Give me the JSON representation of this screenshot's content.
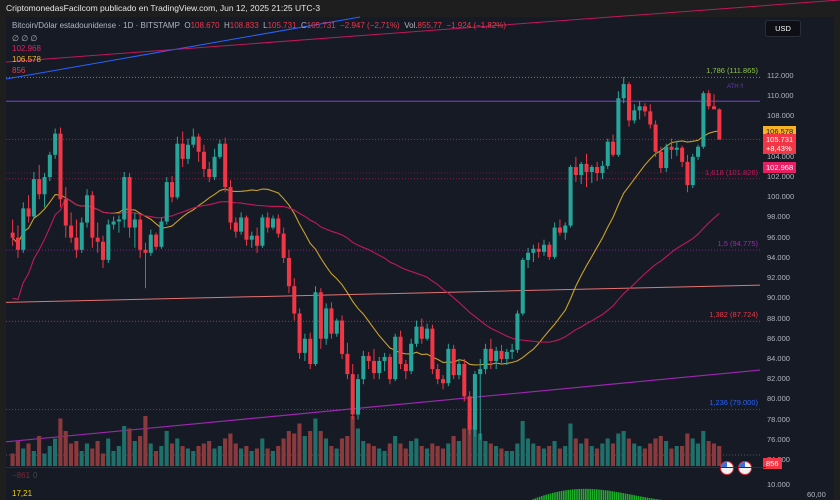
{
  "header": {
    "publisher": "CriptomonedasFacilcom publicado en TradingView.com, Jun 12, 2025 21:25 UTC-3"
  },
  "legend": {
    "symbol": "Bitcoin/Dólar estadounidense · 1D · BITSTAMP",
    "open_label": "O",
    "open": "108.670",
    "high_label": "H",
    "high": "108.833",
    "low_label": "L",
    "low": "105.731",
    "close_label": "C",
    "close": "105.731",
    "change": "−2.947 (−2,71%)",
    "vol_label": "Vol.",
    "vol": "855,77",
    "vol_change": "−1.924 (−1,82%)",
    "indicator_placeholders": "∅ ∅ ∅",
    "ma_slow_value": "102.968",
    "ma_fast_value": "106.578",
    "volume_value": "856"
  },
  "currency_button": "USD",
  "colors": {
    "background": "#161a25",
    "up": "#26a69a",
    "down": "#f23645",
    "ma_fast": "#c9a227",
    "ma_slow": "#c2185b",
    "trend_blue": "#2962ff",
    "trend_purple": "#9c27b0",
    "ath_line": "#673ab7"
  },
  "price_axis": {
    "ticks": [
      "112.000",
      "110.000",
      "108.000",
      "104.000",
      "102.000",
      "100.000",
      "98.000",
      "96.000",
      "94.000",
      "92.000",
      "90.000",
      "88.000",
      "86.000",
      "84.000",
      "82.000",
      "80.000",
      "78.000",
      "76.000",
      "74.000"
    ],
    "tags": [
      {
        "label": "106.578",
        "sub": "",
        "color": "#f5b325",
        "text": "#131722",
        "price": 106.578
      },
      {
        "label": "105.731",
        "sub": "+8,43%",
        "color": "#f23645",
        "text": "#ffffff",
        "price": 105.731
      },
      {
        "label": "102.968",
        "sub": "",
        "color": "#e91e63",
        "text": "#ffffff",
        "price": 102.968
      }
    ],
    "volume_tag": "856",
    "lower_pane_tick": "10.000",
    "lower_pane_right": "60,00"
  },
  "fib_levels": [
    {
      "label": "1,786 (111.865)",
      "price": 111.865,
      "color": "#8bc34a"
    },
    {
      "label": "1,618 (101.826)",
      "price": 101.826,
      "color": "#c2185b"
    },
    {
      "label": "1,5 (94.775)",
      "price": 94.775,
      "color": "#9c27b0"
    },
    {
      "label": "1,382 (87.724)",
      "price": 87.724,
      "color": "#f23645"
    },
    {
      "label": "1,236 (79.000)",
      "price": 79.0,
      "color": "#2962ff"
    }
  ],
  "ath_label": "ATH !!",
  "lower_pane": {
    "value_1": "−861",
    "value_2": "0",
    "value_3": "17,21"
  },
  "chart_data": {
    "type": "candlestick",
    "title": "Bitcoin/Dólar estadounidense · 1D · BITSTAMP",
    "ylabel": "USD",
    "ylim": [
      73000,
      113500
    ],
    "grid": false,
    "overlays": [
      "MA fast (yellow) 106.578",
      "MA slow (crimson) 102.968",
      "Fibonacci extension levels",
      "ATH line ~109.5k",
      "trendlines"
    ],
    "ohlc": [
      [
        96.5,
        97.8,
        95.2,
        96.0
      ],
      [
        96.0,
        97.2,
        94.0,
        94.8
      ],
      [
        94.8,
        99.5,
        94.5,
        98.9
      ],
      [
        98.9,
        100.2,
        97.5,
        98.1
      ],
      [
        98.1,
        102.5,
        97.9,
        101.8
      ],
      [
        101.8,
        103.2,
        99.8,
        100.3
      ],
      [
        100.3,
        102.4,
        99.0,
        102.0
      ],
      [
        102.0,
        104.5,
        101.6,
        104.2
      ],
      [
        104.2,
        106.8,
        103.8,
        106.3
      ],
      [
        106.3,
        106.9,
        99.0,
        99.8
      ],
      [
        99.8,
        101.0,
        96.0,
        97.2
      ],
      [
        97.2,
        98.5,
        95.5,
        96.0
      ],
      [
        96.0,
        97.8,
        94.0,
        94.8
      ],
      [
        94.8,
        98.0,
        94.5,
        97.5
      ],
      [
        97.5,
        100.8,
        97.0,
        100.2
      ],
      [
        100.2,
        100.6,
        95.0,
        96.0
      ],
      [
        96.0,
        97.5,
        94.5,
        95.6
      ],
      [
        95.6,
        96.2,
        93.0,
        93.8
      ],
      [
        93.8,
        97.8,
        93.5,
        97.3
      ],
      [
        97.3,
        98.1,
        96.8,
        97.6
      ],
      [
        97.6,
        98.2,
        96.5,
        97.8
      ],
      [
        97.8,
        102.5,
        97.0,
        102.0
      ],
      [
        102.0,
        102.4,
        96.0,
        97.0
      ],
      [
        97.0,
        98.5,
        95.0,
        97.8
      ],
      [
        97.8,
        98.3,
        94.0,
        94.8
      ],
      [
        94.8,
        95.5,
        91.0,
        94.5
      ],
      [
        94.5,
        96.8,
        94.2,
        96.3
      ],
      [
        96.3,
        96.5,
        94.8,
        95.1
      ],
      [
        95.1,
        98.0,
        94.9,
        97.6
      ],
      [
        97.6,
        102.0,
        97.3,
        101.5
      ],
      [
        101.5,
        102.1,
        99.5,
        100.0
      ],
      [
        100.0,
        106.0,
        99.8,
        105.3
      ],
      [
        105.3,
        106.5,
        103.0,
        103.8
      ],
      [
        103.8,
        105.8,
        103.3,
        105.2
      ],
      [
        105.2,
        106.8,
        104.9,
        106.0
      ],
      [
        106.0,
        106.3,
        103.5,
        104.5
      ],
      [
        104.5,
        105.2,
        102.0,
        102.8
      ],
      [
        102.8,
        103.5,
        101.5,
        102.0
      ],
      [
        102.0,
        104.8,
        101.7,
        104.0
      ],
      [
        104.0,
        105.7,
        103.8,
        105.3
      ],
      [
        105.3,
        105.9,
        100.5,
        101.0
      ],
      [
        101.0,
        101.7,
        96.8,
        97.5
      ],
      [
        97.5,
        98.0,
        96.0,
        96.6
      ],
      [
        96.6,
        98.5,
        96.3,
        98.0
      ],
      [
        98.0,
        98.2,
        95.2,
        95.8
      ],
      [
        95.8,
        96.6,
        95.0,
        96.2
      ],
      [
        96.2,
        97.0,
        94.5,
        95.2
      ],
      [
        95.2,
        98.3,
        95.0,
        98.0
      ],
      [
        98.0,
        98.5,
        96.5,
        97.0
      ],
      [
        97.0,
        98.2,
        96.8,
        97.9
      ],
      [
        97.9,
        98.3,
        96.0,
        96.4
      ],
      [
        96.4,
        97.0,
        93.5,
        94.0
      ],
      [
        94.0,
        94.8,
        90.5,
        91.2
      ],
      [
        91.2,
        92.0,
        87.8,
        88.5
      ],
      [
        88.5,
        89.0,
        84.0,
        84.6
      ],
      [
        84.6,
        86.5,
        83.8,
        86.0
      ],
      [
        86.0,
        86.6,
        83.0,
        83.5
      ],
      [
        83.5,
        91.2,
        83.3,
        90.6
      ],
      [
        90.6,
        91.0,
        85.0,
        86.0
      ],
      [
        86.0,
        89.5,
        85.4,
        89.0
      ],
      [
        89.0,
        89.6,
        86.0,
        86.5
      ],
      [
        86.5,
        88.0,
        86.2,
        87.8
      ],
      [
        87.8,
        88.3,
        84.0,
        84.5
      ],
      [
        84.5,
        85.6,
        82.0,
        82.5
      ],
      [
        82.5,
        83.5,
        78.0,
        78.5
      ],
      [
        78.5,
        82.5,
        78.0,
        82.0
      ],
      [
        82.0,
        84.8,
        81.5,
        84.3
      ],
      [
        84.3,
        84.7,
        83.0,
        83.8
      ],
      [
        83.8,
        85.0,
        82.0,
        82.6
      ],
      [
        82.6,
        84.2,
        82.0,
        83.8
      ],
      [
        83.8,
        84.6,
        82.8,
        84.2
      ],
      [
        84.2,
        84.5,
        81.5,
        82.0
      ],
      [
        82.0,
        86.5,
        81.8,
        86.2
      ],
      [
        86.2,
        86.8,
        83.0,
        83.5
      ],
      [
        83.5,
        83.9,
        82.0,
        82.8
      ],
      [
        82.8,
        86.0,
        82.5,
        85.5
      ],
      [
        85.5,
        87.8,
        85.2,
        87.2
      ],
      [
        87.2,
        88.0,
        85.5,
        86.0
      ],
      [
        86.0,
        87.5,
        85.8,
        87.0
      ],
      [
        87.0,
        87.4,
        82.5,
        83.0
      ],
      [
        83.0,
        83.5,
        81.5,
        82.0
      ],
      [
        82.0,
        82.4,
        81.0,
        81.6
      ],
      [
        81.6,
        85.5,
        81.3,
        85.0
      ],
      [
        85.0,
        85.4,
        82.0,
        82.4
      ],
      [
        82.4,
        84.0,
        82.0,
        83.5
      ],
      [
        83.5,
        84.0,
        79.8,
        80.3
      ],
      [
        80.3,
        80.8,
        76.5,
        77.0
      ],
      [
        77.0,
        82.8,
        76.3,
        82.5
      ],
      [
        82.5,
        84.0,
        76.0,
        83.0
      ],
      [
        83.0,
        85.5,
        82.5,
        85.0
      ],
      [
        85.0,
        86.0,
        83.0,
        83.8
      ],
      [
        83.8,
        85.2,
        83.0,
        84.8
      ],
      [
        84.8,
        85.4,
        83.6,
        84.0
      ],
      [
        84.0,
        85.0,
        83.4,
        84.7
      ],
      [
        84.7,
        85.5,
        84.0,
        84.9
      ],
      [
        84.9,
        88.8,
        84.6,
        88.5
      ],
      [
        88.5,
        94.0,
        88.3,
        93.8
      ],
      [
        93.8,
        95.0,
        93.0,
        94.5
      ],
      [
        94.5,
        95.3,
        93.6,
        94.9
      ],
      [
        94.9,
        95.5,
        94.0,
        94.6
      ],
      [
        94.6,
        95.8,
        94.2,
        95.3
      ],
      [
        95.3,
        95.6,
        93.8,
        94.1
      ],
      [
        94.1,
        97.5,
        93.9,
        97.0
      ],
      [
        97.0,
        97.8,
        96.2,
        96.5
      ],
      [
        96.5,
        97.5,
        95.8,
        97.2
      ],
      [
        97.2,
        103.2,
        97.0,
        103.0
      ],
      [
        103.0,
        104.0,
        101.5,
        102.2
      ],
      [
        102.2,
        103.5,
        101.3,
        103.3
      ],
      [
        103.3,
        104.3,
        101.0,
        102.5
      ],
      [
        102.5,
        103.2,
        101.4,
        103.0
      ],
      [
        103.0,
        103.5,
        101.6,
        102.4
      ],
      [
        102.4,
        103.6,
        101.8,
        103.1
      ],
      [
        103.1,
        105.8,
        102.8,
        105.5
      ],
      [
        105.5,
        106.2,
        104.0,
        104.2
      ],
      [
        104.2,
        110.5,
        104.0,
        109.8
      ],
      [
        109.8,
        111.9,
        109.3,
        111.2
      ],
      [
        111.2,
        111.4,
        107.0,
        107.6
      ],
      [
        107.6,
        109.2,
        107.3,
        108.6
      ],
      [
        108.6,
        109.5,
        107.7,
        109.0
      ],
      [
        109.0,
        109.3,
        108.0,
        108.5
      ],
      [
        108.5,
        109.2,
        106.8,
        107.2
      ],
      [
        107.2,
        107.6,
        104.0,
        104.5
      ],
      [
        104.5,
        105.0,
        102.4,
        102.9
      ],
      [
        102.9,
        105.3,
        102.5,
        105.0
      ],
      [
        105.0,
        105.8,
        103.8,
        104.7
      ],
      [
        104.7,
        105.6,
        104.1,
        104.9
      ],
      [
        104.9,
        105.1,
        103.0,
        103.5
      ],
      [
        103.5,
        104.2,
        100.5,
        101.2
      ],
      [
        101.2,
        104.3,
        100.9,
        104.0
      ],
      [
        104.0,
        105.2,
        103.7,
        105.0
      ],
      [
        105.0,
        110.5,
        104.8,
        110.3
      ],
      [
        110.3,
        110.6,
        108.7,
        109.0
      ],
      [
        109.0,
        110.2,
        108.8,
        108.7
      ],
      [
        108.7,
        108.8,
        105.7,
        105.7
      ]
    ],
    "volume_relative": [
      0.25,
      0.5,
      0.35,
      0.45,
      0.3,
      0.6,
      0.25,
      0.4,
      0.55,
      0.95,
      0.7,
      0.45,
      0.5,
      0.3,
      0.45,
      0.35,
      0.5,
      0.25,
      0.55,
      0.3,
      0.4,
      0.8,
      0.75,
      0.5,
      0.6,
      1.0,
      0.45,
      0.3,
      0.4,
      0.7,
      0.45,
      0.55,
      0.4,
      0.35,
      0.3,
      0.4,
      0.45,
      0.5,
      0.35,
      0.4,
      0.55,
      0.65,
      0.45,
      0.35,
      0.4,
      0.3,
      0.35,
      0.55,
      0.35,
      0.3,
      0.4,
      0.55,
      0.7,
      0.65,
      0.85,
      0.6,
      0.7,
      0.95,
      0.7,
      0.55,
      0.4,
      0.35,
      0.55,
      0.6,
      1.0,
      0.75,
      0.5,
      0.45,
      0.4,
      0.35,
      0.3,
      0.45,
      0.6,
      0.45,
      0.35,
      0.5,
      0.55,
      0.4,
      0.35,
      0.45,
      0.4,
      0.35,
      0.45,
      0.6,
      0.5,
      0.75,
      1.0,
      0.8,
      0.65,
      0.5,
      0.45,
      0.4,
      0.35,
      0.3,
      0.3,
      0.45,
      0.9,
      0.55,
      0.45,
      0.4,
      0.35,
      0.4,
      0.5,
      0.35,
      0.4,
      0.85,
      0.55,
      0.45,
      0.55,
      0.4,
      0.35,
      0.45,
      0.55,
      0.45,
      0.65,
      0.7,
      0.55,
      0.45,
      0.4,
      0.35,
      0.45,
      0.55,
      0.6,
      0.5,
      0.35,
      0.4,
      0.4,
      0.65,
      0.55,
      0.45,
      0.7,
      0.5,
      0.45,
      0.4
    ]
  }
}
